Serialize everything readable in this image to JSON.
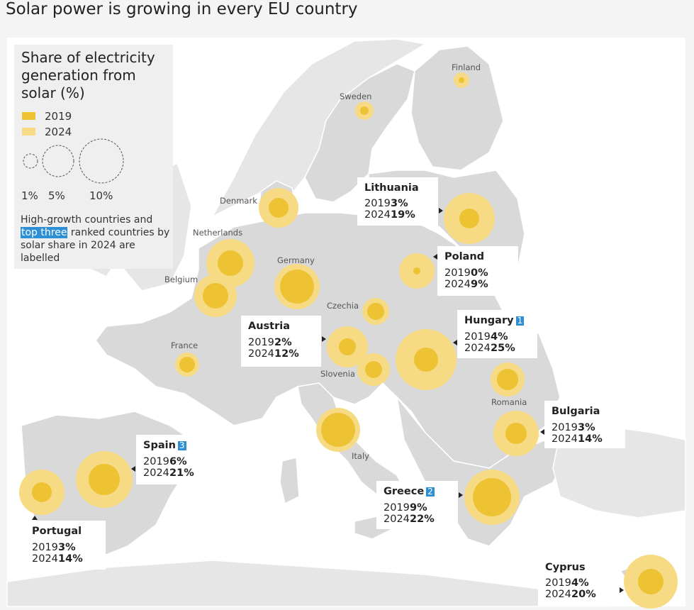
{
  "title": "Solar power is growing in every EU country",
  "legend": {
    "title": "Share of electricity generation from solar (%)",
    "year_2019": "2019",
    "year_2024": "2024",
    "color_2019": "#edc233",
    "color_2024": "#f7db84",
    "size_labels": [
      "1%",
      "5%",
      "10%"
    ],
    "note_before": "High-growth countries and ",
    "note_highlight": "top three",
    "note_after": " ranked countries by solar share in 2024 are labelled"
  },
  "country_labels": [
    "Finland",
    "Sweden",
    "Denmark",
    "Netherlands",
    "Germany",
    "Belgium",
    "Czechia",
    "France",
    "Slovenia",
    "Romania",
    "Italy"
  ],
  "chart_data": {
    "type": "proportional-symbol-map",
    "title": "Solar power is growing in every EU country",
    "measure": "Share of electricity generation from solar (%)",
    "series": [
      "2019",
      "2024"
    ],
    "labelled_countries": [
      {
        "name": "Lithuania",
        "y2019": 3,
        "y2024": 19,
        "rank": ""
      },
      {
        "name": "Poland",
        "y2019": 0,
        "y2024": 9,
        "rank": ""
      },
      {
        "name": "Hungary",
        "y2019": 4,
        "y2024": 25,
        "rank": "1"
      },
      {
        "name": "Austria",
        "y2019": 2,
        "y2024": 12,
        "rank": ""
      },
      {
        "name": "Bulgaria",
        "y2019": 3,
        "y2024": 14,
        "rank": ""
      },
      {
        "name": "Spain",
        "y2019": 6,
        "y2024": 21,
        "rank": "3"
      },
      {
        "name": "Greece",
        "y2019": 9,
        "y2024": 22,
        "rank": "2"
      },
      {
        "name": "Portugal",
        "y2019": 3,
        "y2024": 14,
        "rank": ""
      },
      {
        "name": "Cyprus",
        "y2019": 4,
        "y2024": 20,
        "rank": ""
      }
    ]
  },
  "card_labels": {
    "y2019": "2019",
    "y2024": "2024",
    "suffix": "%"
  }
}
